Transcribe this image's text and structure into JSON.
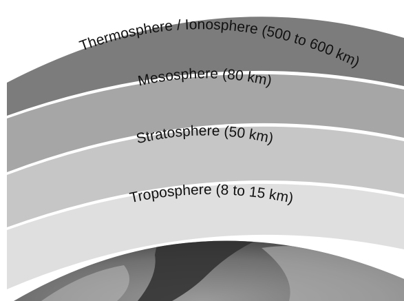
{
  "layers": [
    {
      "id": "thermosphere",
      "label": "Thermosphere / Ionosphere (500 to 600 km)",
      "color": "#7c7c7c"
    },
    {
      "id": "mesosphere",
      "label": "Mesosphere (80 km)",
      "color": "#a6a6a6"
    },
    {
      "id": "stratosphere",
      "label": "Stratosphere (50 km)",
      "color": "#c6c6c6"
    },
    {
      "id": "troposphere",
      "label": "Troposphere (8 to 15 km)",
      "color": "#dfdfdf"
    }
  ],
  "earth": {
    "ocean_color": "#555555",
    "land_color": "#9a9a9a"
  },
  "separator_color": "#ffffff"
}
